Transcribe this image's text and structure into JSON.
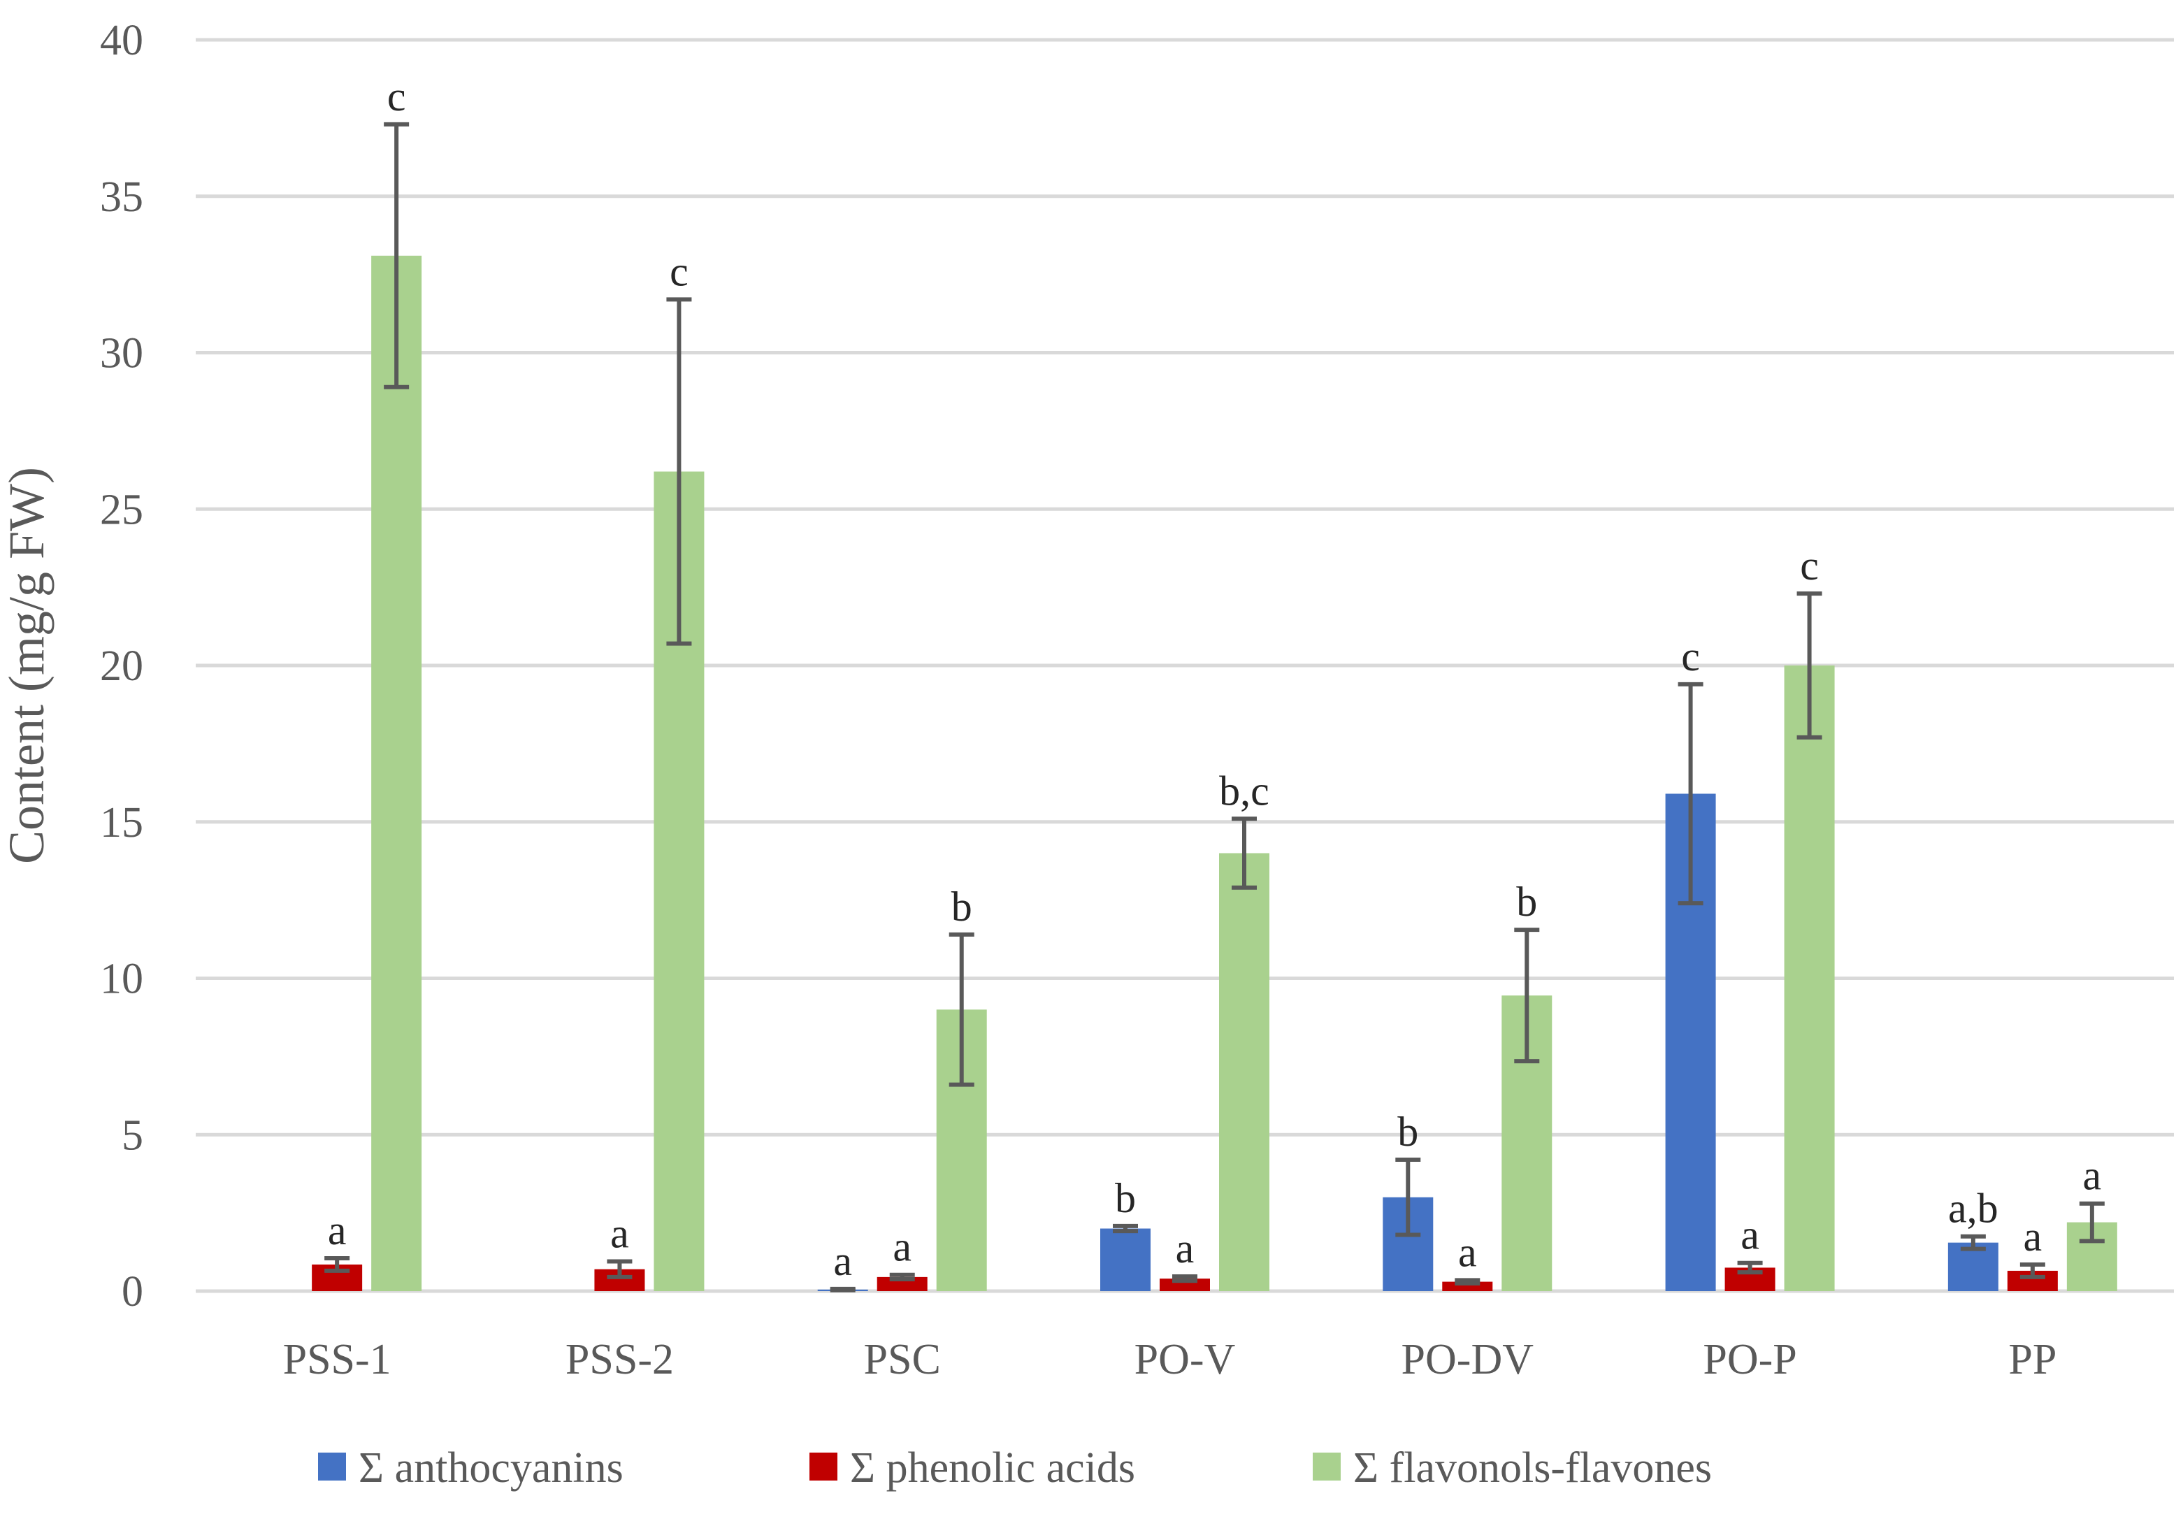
{
  "chart_data": {
    "type": "bar",
    "title": "",
    "xlabel": "",
    "ylabel": "Content (mg/g FW)",
    "ylim": [
      0,
      40
    ],
    "yticks": [
      0,
      5,
      10,
      15,
      20,
      25,
      30,
      35,
      40
    ],
    "grid": true,
    "legend_position": "bottom",
    "categories": [
      "PSS-1",
      "PSS-2",
      "PSC",
      "PO-V",
      "PO-DV",
      "PO-P",
      "PP"
    ],
    "series": [
      {
        "name": "Σ anthocyanins",
        "color": "#4472C4",
        "values": [
          null,
          null,
          0.05,
          2.0,
          3.0,
          15.9,
          1.55
        ],
        "errors": [
          null,
          null,
          0.02,
          0.08,
          1.2,
          3.5,
          0.2
        ],
        "letters": [
          "",
          "",
          "a",
          "b",
          "b",
          "c",
          "a,b"
        ]
      },
      {
        "name": "Σ phenolic acids",
        "color": "#C00000",
        "values": [
          0.85,
          0.7,
          0.45,
          0.4,
          0.3,
          0.75,
          0.65
        ],
        "errors": [
          0.2,
          0.25,
          0.07,
          0.07,
          0.05,
          0.15,
          0.2
        ],
        "letters": [
          "a",
          "a",
          "a",
          "a",
          "a",
          "a",
          "a"
        ]
      },
      {
        "name": "Σ flavonols-flavones",
        "color": "#A9D18E",
        "values": [
          33.1,
          26.2,
          9.0,
          14.0,
          9.45,
          20.0,
          2.2
        ],
        "errors": [
          4.2,
          5.5,
          2.4,
          1.1,
          2.1,
          2.3,
          0.6
        ],
        "letters": [
          "c",
          "c",
          "b",
          "b,c",
          "b",
          "c",
          "a"
        ]
      }
    ]
  }
}
